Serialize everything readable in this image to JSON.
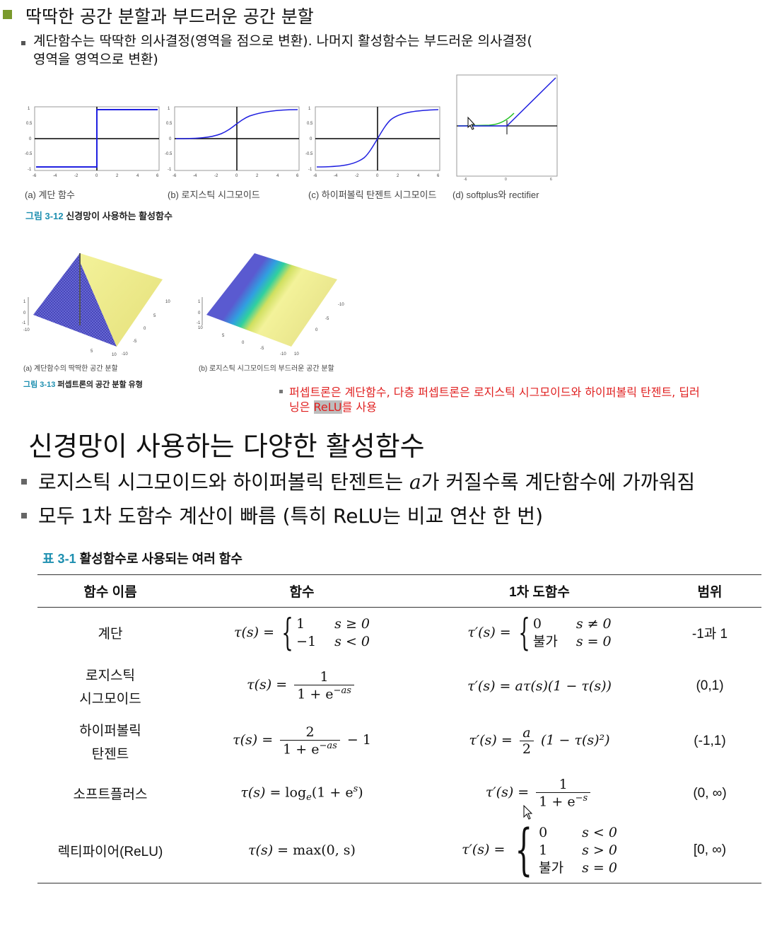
{
  "slide1": {
    "title": "딱딱한 공간 분할과 부드러운 공간 분할",
    "bullet_line1": "계단함수는 딱딱한 의사결정(영역을 점으로 변환). 나머지 활성함수는 부드러운 의사결정(",
    "bullet_line2": "영역을 영역으로 변환)",
    "fig12": {
      "captions": [
        "(a) 계단 함수",
        "(b) 로지스틱 시그모이드",
        "(c) 하이퍼볼릭 탄젠트 시그모이드",
        "(d) softplus와 rectifier"
      ],
      "label_num": "그림 3-12",
      "label_text": "신경망이 사용하는 활성함수",
      "y_ticks": [
        "1",
        "0.5",
        "0",
        "-0.5",
        "-1"
      ],
      "x_ticks": [
        "-6",
        "-4",
        "-2",
        "0",
        "2",
        "4",
        "6"
      ]
    },
    "fig13": {
      "caption_a": "(a) 계단함수의 딱딱한 공간 분할",
      "caption_b": "(b) 로지스틱 시그모이드의 부드러운 공간 분할",
      "label_num": "그림 3-13",
      "label_text": "퍼셉트론의 공간 분할 유형",
      "z_ticks": [
        "1",
        "0",
        "-1"
      ],
      "axis_ticks": [
        "10",
        "5",
        "0",
        "-5",
        "-10"
      ]
    },
    "note_part1": "퍼셉트론은 계단함수, 다층 퍼셉트론은 로지스틱 시그모이드와 하이퍼볼릭 탄젠트, 딥러",
    "note_part2_pre": "닝은 ",
    "note_highlight": "ReLU",
    "note_part2_post": "를 사용"
  },
  "slide2": {
    "title": "신경망이 사용하는 다양한 활성함수",
    "bullet1_pre": "로지스틱 시그모이드와 하이퍼볼릭 탄젠트는 ",
    "bullet1_var": "a",
    "bullet1_post": "가 커질수록 계단함수에 가까워짐",
    "bullet2": "모두 1차 도함수 계산이 빠름 (특히 ReLU는 비교 연산 한 번)",
    "table_label_num": "표 3-1",
    "table_label_text": "활성함수로 사용되는 여러 함수",
    "headers": [
      "함수 이름",
      "함수",
      "1차 도함수",
      "범위"
    ],
    "rows": [
      {
        "name_line1": "계단",
        "name_line2": "",
        "range": "-1과 1"
      },
      {
        "name_line1": "로지스틱",
        "name_line2": "시그모이드",
        "range": "(0,1)"
      },
      {
        "name_line1": "하이퍼볼릭",
        "name_line2": "탄젠트",
        "range": "(-1,1)"
      },
      {
        "name_line1": "소프트플러스",
        "name_line2": "",
        "range": "(0, ∞)"
      },
      {
        "name_line1": "렉티파이어(ReLU)",
        "name_line2": "",
        "range": "[0, ∞)"
      }
    ],
    "math": {
      "tau_s": "τ(s) =",
      "tau_p": "τ′(s) =",
      "one": "1",
      "neg_one": "−1",
      "zero": "0",
      "two": "2",
      "a": "a",
      "bulga": "불가",
      "cond_ge0": "s ≥ 0",
      "cond_lt0": "s < 0",
      "cond_ne0": "s ≠ 0",
      "cond_eq0": "s = 0",
      "cond_gt0": "s > 0",
      "sig_den": "1 + e",
      "sig_exp": "−as",
      "logistic_deriv": "aτ(s)(1 − τ(s))",
      "minus_one": "− 1",
      "tanh_deriv": "(1 − τ(s)²)",
      "softplus_rhs": "log",
      "softplus_sub": "e",
      "softplus_arg": "(1 + e",
      "softplus_sup": "s",
      "softplus_close": ")",
      "soft_den_exp": "−s",
      "relu_rhs": "max(0, s)"
    }
  }
}
